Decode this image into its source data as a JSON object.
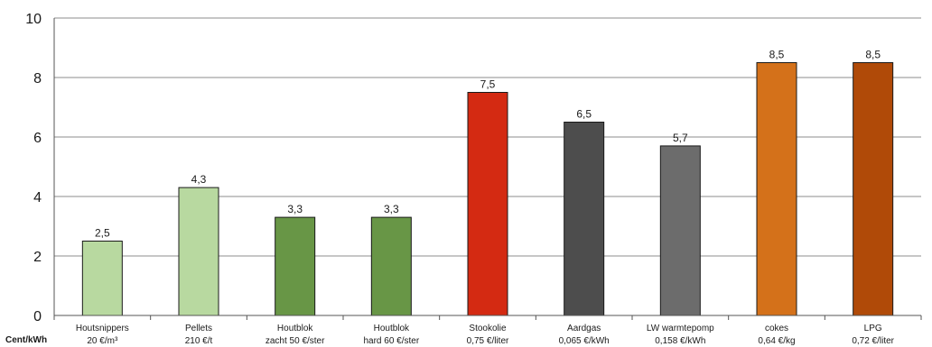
{
  "corner_label": "Cent/kWh",
  "chart_data": {
    "type": "bar",
    "ylim": [
      0,
      10
    ],
    "yticks": [
      "0",
      "2",
      "4",
      "6",
      "8",
      "10"
    ],
    "grid": true,
    "categories": [
      "Houtsnippers",
      "Pellets",
      "Houtblok",
      "Houtblok",
      "Stookolie",
      "Aardgas",
      "LW warmtepomp",
      "cokes",
      "LPG"
    ],
    "sublabels": [
      "20 €/m³",
      "210 €/t",
      "zacht 50 €/ster",
      "hard 60 €/ster",
      "0,75 €/liter",
      "0,065 €/kWh",
      "0,158 €/kWh",
      "0,64 €/kg",
      "0,72 €/liter"
    ],
    "values": [
      2.5,
      4.3,
      3.3,
      3.3,
      7.5,
      6.5,
      5.7,
      8.5,
      8.5
    ],
    "value_labels": [
      "2,5",
      "4,3",
      "3,3",
      "3,3",
      "7,5",
      "6,5",
      "5,7",
      "8,5",
      "8,5"
    ],
    "colors": [
      "#b8d9a0",
      "#b8d9a0",
      "#689646",
      "#689646",
      "#d42a12",
      "#4d4d4d",
      "#6c6c6c",
      "#d4711a",
      "#b04a08"
    ]
  }
}
